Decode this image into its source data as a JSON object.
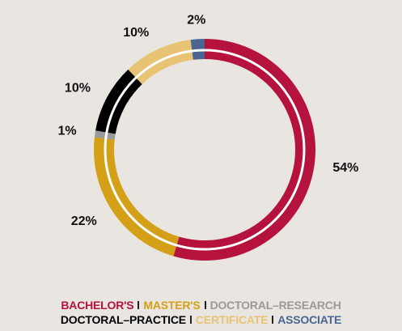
{
  "chart_data": {
    "type": "donut",
    "categories": [
      "BACHELOR'S",
      "MASTER'S",
      "DOCTORAL–RESEARCH",
      "DOCTORAL–PRACTICE",
      "CERTIFICATE",
      "ASSOCIATE"
    ],
    "values": [
      54,
      22,
      1,
      10,
      10,
      2
    ],
    "value_labels": [
      "54%",
      "22%",
      "1%",
      "10%",
      "10%",
      "2%"
    ],
    "colors": [
      "#b5123e",
      "#d4a017",
      "#9a9a9a",
      "#000000",
      "#e8c374",
      "#4a6591"
    ]
  }
}
